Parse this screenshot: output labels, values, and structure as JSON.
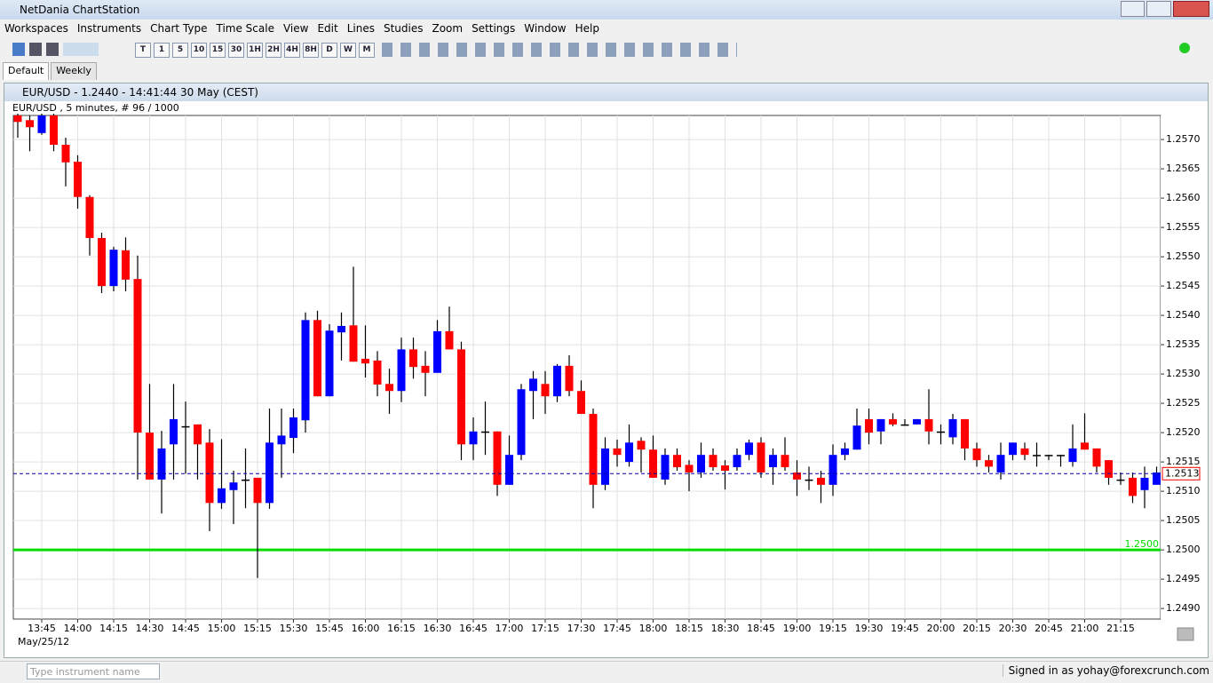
{
  "app": {
    "title": "NetDania ChartStation",
    "menu": [
      "Workspaces",
      "Instruments",
      "Chart Type",
      "Time Scale",
      "View",
      "Edit",
      "Lines",
      "Studies",
      "Zoom",
      "Settings",
      "Window",
      "Help"
    ],
    "timeframes": [
      "T",
      "1",
      "5",
      "10",
      "15",
      "30",
      "1H",
      "2H",
      "4H",
      "8H",
      "D",
      "W",
      "M"
    ],
    "tabs": [
      "Default",
      "Weekly"
    ],
    "window_title": "EUR/USD - 1.2440 - 14:41:44  30 May (CEST)",
    "search_placeholder": "Type instrument name",
    "status": "Signed in as yohay@forexcrunch.com"
  },
  "chart_data": {
    "type": "candlestick",
    "title": "EUR/USD , 5 minutes, # 96 / 1000",
    "date_label": "May/25/12",
    "up_color": "#0000ff",
    "down_color": "#ff0000",
    "grid": true,
    "categories": [
      null,
      null,
      "13:45",
      null,
      null,
      "14:00",
      null,
      null,
      "14:15",
      null,
      null,
      "14:30",
      null,
      null,
      "14:45",
      null,
      null,
      "15:00",
      null,
      null,
      "15:15",
      null,
      null,
      "15:30",
      null,
      null,
      "15:45",
      null,
      null,
      "16:00",
      null,
      null,
      "16:15",
      null,
      null,
      "16:30",
      null,
      null,
      "16:45",
      null,
      null,
      "17:00",
      null,
      null,
      "17:15",
      null,
      null,
      "17:30",
      null,
      null,
      "17:45",
      null,
      null,
      "18:00",
      null,
      null,
      "18:15",
      null,
      null,
      "18:30",
      null,
      null,
      "18:45",
      null,
      null,
      "19:00",
      null,
      null,
      "19:15",
      null,
      null,
      "19:30",
      null,
      null,
      "19:45",
      null,
      null,
      "20:00",
      null,
      null,
      "20:15",
      null,
      null,
      "20:30",
      null,
      null,
      "20:45",
      null,
      null,
      "21:00",
      null,
      null,
      "21:15",
      null,
      null,
      null
    ],
    "open": [
      1.25741,
      1.25733,
      1.25711,
      1.25741,
      1.25691,
      1.25662,
      1.25602,
      1.25532,
      1.2545,
      1.25511,
      1.25462,
      1.252,
      1.2512,
      1.2518,
      1.25211,
      1.25214,
      1.25183,
      1.2508,
      1.25102,
      1.2512,
      1.25123,
      1.2508,
      1.2518,
      1.25191,
      1.25221,
      1.25392,
      1.25262,
      1.25371,
      1.25383,
      1.25326,
      1.25323,
      1.25283,
      1.25271,
      1.25342,
      1.25314,
      1.25302,
      1.25373,
      1.25342,
      1.2518,
      1.25202,
      1.25202,
      1.25111,
      1.25162,
      1.25271,
      1.25283,
      1.25262,
      1.25314,
      1.25271,
      1.25232,
      1.25111,
      1.25173,
      1.2515,
      1.25186,
      1.25171,
      1.2512,
      1.25162,
      1.25145,
      1.25132,
      1.25162,
      1.25144,
      1.25141,
      1.25162,
      1.25183,
      1.25141,
      1.25162,
      1.25132,
      1.2512,
      1.25123,
      1.25111,
      1.25162,
      1.25171,
      1.25223,
      1.25202,
      1.25223,
      1.25214,
      1.25214,
      1.25223,
      1.25202,
      1.25192,
      1.25223,
      1.25173,
      1.25153,
      1.25132,
      1.25162,
      1.25173,
      1.25162,
      1.25162,
      1.25162,
      1.2515,
      1.25183,
      1.25173,
      1.25153,
      1.2512,
      1.25123,
      1.25102,
      1.25111
    ],
    "high": [
      1.25744,
      1.25741,
      1.25744,
      1.25744,
      1.25703,
      1.25673,
      1.25605,
      1.25541,
      1.25517,
      1.25533,
      1.25502,
      1.25283,
      1.25203,
      1.25283,
      1.25253,
      1.25214,
      1.25206,
      1.25189,
      1.25135,
      1.25173,
      1.25123,
      1.25241,
      1.25241,
      1.25241,
      1.25405,
      1.25408,
      1.25385,
      1.25405,
      1.25483,
      1.25383,
      1.25339,
      1.25309,
      1.25362,
      1.25362,
      1.25339,
      1.25392,
      1.25415,
      1.25355,
      1.25226,
      1.25253,
      1.25202,
      1.25195,
      1.25283,
      1.25305,
      1.25305,
      1.25317,
      1.25332,
      1.25289,
      1.25241,
      1.25192,
      1.25188,
      1.25214,
      1.25192,
      1.25195,
      1.25173,
      1.25173,
      1.25153,
      1.25183,
      1.25173,
      1.25153,
      1.25173,
      1.25188,
      1.25192,
      1.25173,
      1.25192,
      1.25153,
      1.25142,
      1.25135,
      1.2518,
      1.25183,
      1.25241,
      1.25241,
      1.25223,
      1.25233,
      1.25223,
      1.25223,
      1.25274,
      1.25214,
      1.25232,
      1.25223,
      1.25183,
      1.25162,
      1.25183,
      1.25183,
      1.25183,
      1.25183,
      1.25162,
      1.25162,
      1.25214,
      1.25233,
      1.25173,
      1.25153,
      1.25132,
      1.25132,
      1.25142,
      1.25142
    ],
    "low": [
      1.25703,
      1.2568,
      1.25708,
      1.2568,
      1.2562,
      1.25582,
      1.25502,
      1.25438,
      1.25441,
      1.25441,
      1.2512,
      1.2512,
      1.25062,
      1.2512,
      1.2513,
      1.2512,
      1.25032,
      1.2507,
      1.25044,
      1.25071,
      1.24952,
      1.2507,
      1.25123,
      1.25165,
      1.252,
      1.25262,
      1.25262,
      1.25323,
      1.25321,
      1.25294,
      1.25262,
      1.25232,
      1.25252,
      1.25292,
      1.25262,
      1.25302,
      1.25342,
      1.25153,
      1.25153,
      1.25162,
      1.25092,
      1.25111,
      1.25153,
      1.25223,
      1.25232,
      1.25252,
      1.25262,
      1.25232,
      1.25071,
      1.25102,
      1.25142,
      1.25142,
      1.25132,
      1.25123,
      1.25111,
      1.25135,
      1.251,
      1.25123,
      1.25135,
      1.25103,
      1.25135,
      1.25153,
      1.25123,
      1.25111,
      1.25135,
      1.25092,
      1.25102,
      1.2508,
      1.25092,
      1.25153,
      1.25171,
      1.2518,
      1.2518,
      1.25211,
      1.25214,
      1.25214,
      1.2518,
      1.2518,
      1.2518,
      1.25153,
      1.25142,
      1.25132,
      1.2512,
      1.25153,
      1.25153,
      1.25142,
      1.25153,
      1.25142,
      1.25142,
      1.25171,
      1.25132,
      1.25111,
      1.25111,
      1.2508,
      1.25071,
      1.25111
    ],
    "close": [
      1.2573,
      1.25721,
      1.25741,
      1.25691,
      1.25661,
      1.25602,
      1.25532,
      1.2545,
      1.25512,
      1.25461,
      1.252,
      1.2512,
      1.25173,
      1.25223,
      1.25211,
      1.2518,
      1.2508,
      1.25105,
      1.25115,
      1.2512,
      1.2508,
      1.25183,
      1.25195,
      1.25226,
      1.25392,
      1.25262,
      1.25374,
      1.25382,
      1.25321,
      1.25318,
      1.25282,
      1.25271,
      1.25342,
      1.25312,
      1.25302,
      1.25373,
      1.25342,
      1.2518,
      1.25202,
      1.25202,
      1.25111,
      1.25162,
      1.25274,
      1.25292,
      1.25262,
      1.25314,
      1.25271,
      1.25232,
      1.25111,
      1.25173,
      1.25162,
      1.25183,
      1.25171,
      1.25123,
      1.25162,
      1.25141,
      1.25132,
      1.25162,
      1.25141,
      1.25135,
      1.25162,
      1.25183,
      1.25132,
      1.25162,
      1.25141,
      1.2512,
      1.2512,
      1.25111,
      1.25162,
      1.25173,
      1.25212,
      1.252,
      1.25223,
      1.25214,
      1.25214,
      1.25223,
      1.25202,
      1.25202,
      1.25223,
      1.25173,
      1.25153,
      1.25142,
      1.25162,
      1.25183,
      1.25162,
      1.25162,
      1.25162,
      1.25162,
      1.25173,
      1.25171,
      1.25142,
      1.25123,
      1.2512,
      1.25092,
      1.25123,
      1.25132
    ],
    "ylim": [
      1.24882,
      1.25741
    ],
    "yticks": [
      {
        "value": 1.249,
        "label": "1.2490"
      },
      1.2495,
      {
        "value": 1.25,
        "label": "1.2500"
      },
      1.2505,
      {
        "value": 1.251,
        "label": "1.2510"
      },
      1.2515,
      {
        "value": 1.252,
        "label": "1.2520"
      },
      1.2525,
      {
        "value": 1.253,
        "label": "1.2530"
      },
      1.2535,
      {
        "value": 1.254,
        "label": "1.2540"
      },
      1.2545,
      {
        "value": 1.255,
        "label": "1.2550"
      },
      1.2555,
      {
        "value": 1.256,
        "label": "1.2560"
      },
      1.2565,
      {
        "value": 1.257,
        "label": "1.2570"
      }
    ],
    "level_line": {
      "value": 1.25,
      "label": "1.2500",
      "color": "#00dd00"
    },
    "price_line": {
      "value": 1.2513,
      "label": "1.2513",
      "color": "#0000aa"
    }
  }
}
